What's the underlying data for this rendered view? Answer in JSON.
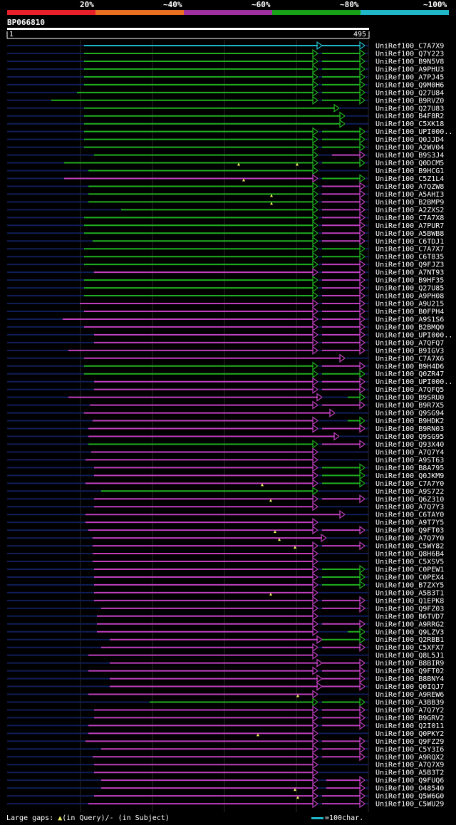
{
  "colors": {
    "red": "#e8202a",
    "orange": "#e87020",
    "purple": "#a030a0",
    "green": "#18a018",
    "cyan": "#20b8c8",
    "purple_line": "#c040c0",
    "green_line": "#20b020",
    "navy": "#101e58"
  },
  "header": {
    "scale_labels": [
      "20%",
      "~40%",
      "~60%",
      "~80%",
      "~100%"
    ],
    "query_name": "BP066810",
    "ruler_start": "1",
    "ruler_end": "495"
  },
  "legend": {
    "large_gaps_prefix": "Large gaps: ",
    "in_query": "(in Query)/",
    "in_subject": "(in Subject)",
    "scale_text": "=100char."
  },
  "hits": [
    "UniRef100_C7A7X9",
    "UniRef100_Q7Y223",
    "UniRef100_B9N5V8",
    "UniRef100_A9PHU3",
    "UniRef100_A7PJ45",
    "UniRef100_Q9M0H6",
    "UniRef100_Q27U84",
    "UniRef100_B9RVZ0",
    "UniRef100_Q27U83",
    "UniRef100_B4F8R2",
    "UniRef100_C5XK18",
    "UniRef100_UPI000..",
    "UniRef100_Q0JJD4",
    "UniRef100_A2WV04",
    "UniRef100_B9S3J4",
    "UniRef100_Q0DCM5",
    "UniRef100_B9HCG1",
    "UniRef100_C5Z1L4",
    "UniRef100_A7QZW8",
    "UniRef100_A5AHI3",
    "UniRef100_B2BMP9",
    "UniRef100_A2ZXS2",
    "UniRef100_C7A7X8",
    "UniRef100_A7PUR7",
    "UniRef100_A5BWB8",
    "UniRef100_C6TDJ1",
    "UniRef100_C7A7X7",
    "UniRef100_C6T835",
    "UniRef100_Q9FJZ3",
    "UniRef100_A7NT93",
    "UniRef100_B9HF35",
    "UniRef100_Q27U85",
    "UniRef100_A9PH08",
    "UniRef100_A9U215",
    "UniRef100_B0FPH4",
    "UniRef100_A9S1S6",
    "UniRef100_B2BMQ0",
    "UniRef100_UPI000..",
    "UniRef100_A7QFQ7",
    "UniRef100_B9IGV3",
    "UniRef100_C7A7X6",
    "UniRef100_B9H4D6",
    "UniRef100_Q0ZR47",
    "UniRef100_UPI000..",
    "UniRef100_A7QFQ5",
    "UniRef100_B9SRU0",
    "UniRef100_B9R7X5",
    "UniRef100_Q9SG94",
    "UniRef100_B9HDK2",
    "UniRef100_B9RN03",
    "UniRef100_Q9SG95",
    "UniRef100_Q93X40",
    "UniRef100_A7Q7Y4",
    "UniRef100_A9ST63",
    "UniRef100_B8A795",
    "UniRef100_Q0JKM9",
    "UniRef100_C7A7Y0",
    "UniRef100_A9S722",
    "UniRef100_Q6Z310",
    "UniRef100_A7Q7Y3",
    "UniRef100_C6TAY0",
    "UniRef100_A9T7Y5",
    "UniRef100_Q9FT03",
    "UniRef100_A7Q7Y0",
    "UniRef100_C5WY82",
    "UniRef100_Q8H6B4",
    "UniRef100_C5XSV5",
    "UniRef100_C0PEW1",
    "UniRef100_C0PEX4",
    "UniRef100_B7ZXY5",
    "UniRef100_A5B3T1",
    "UniRef100_Q1EPK8",
    "UniRef100_Q9FZ03",
    "UniRef100_B6TVD7",
    "UniRef100_A9RRG2",
    "UniRef100_Q9LZV3",
    "UniRef100_Q2RBB1",
    "UniRef100_C5XFX7",
    "UniRef100_Q8L5J1",
    "UniRef100_B8BIR9",
    "UniRef100_Q9FT02",
    "UniRef100_B8BNY4",
    "UniRef100_Q0IQJ7",
    "UniRef100_A9REW6",
    "UniRef100_A3BB39",
    "UniRef100_A7Q7Y2",
    "UniRef100_B9GRV2",
    "UniRef100_Q2I011",
    "UniRef100_Q0PKY2",
    "UniRef100_Q9FZ29",
    "UniRef100_C5Y3I6",
    "UniRef100_A9RQX2",
    "UniRef100_A7Q7X9",
    "UniRef100_A5B3T2",
    "UniRef100_Q9FUQ6",
    "UniRef100_O48540",
    "UniRef100_Q5W6G0",
    "UniRef100_C5WU29"
  ]
}
